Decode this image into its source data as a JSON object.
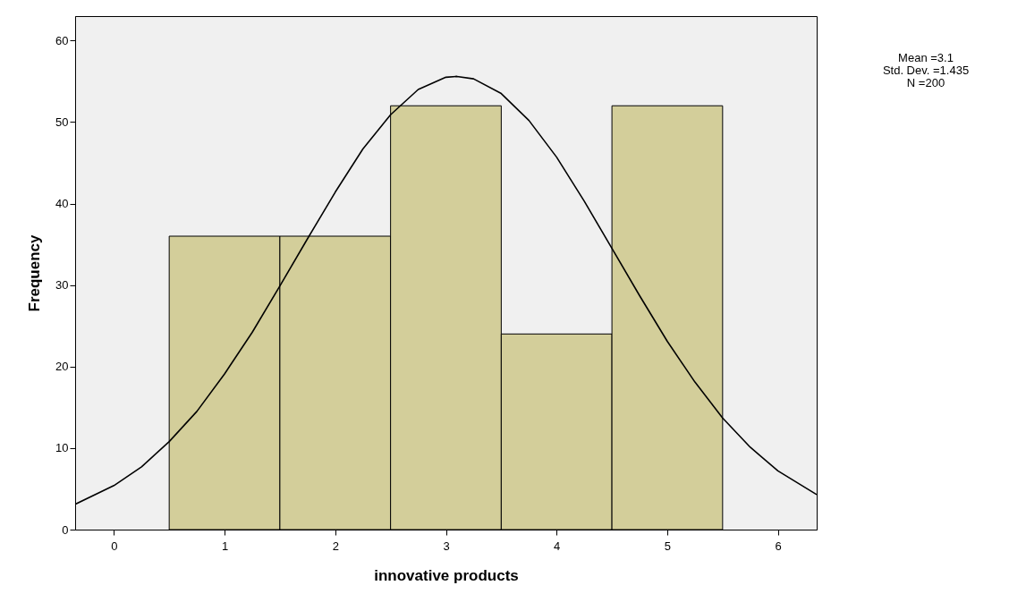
{
  "chart_data": {
    "type": "histogram",
    "xlabel": "innovative products",
    "ylabel": "Frequency",
    "xlim": [
      -0.35,
      6.35
    ],
    "xticks": [
      0,
      1,
      2,
      3,
      4,
      5,
      6
    ],
    "ylim": [
      0,
      63
    ],
    "yticks": [
      0,
      10,
      20,
      30,
      40,
      50,
      60
    ],
    "grid": false,
    "series": [
      {
        "color": "#d3ce9a",
        "bins": [
          0.5,
          1.5,
          2.5,
          3.5,
          4.5,
          5.5
        ],
        "values": [
          36,
          36,
          52,
          24,
          52
        ]
      },
      {
        "type": "line",
        "color": "#000000",
        "x": [
          -0.35,
          0,
          0.25,
          0.5,
          0.75,
          1,
          1.25,
          1.5,
          1.75,
          2,
          2.25,
          2.5,
          2.75,
          3,
          3.1,
          3.25,
          3.5,
          3.75,
          4,
          4.25,
          4.5,
          4.75,
          5,
          5.25,
          5.5,
          5.75,
          6,
          6.35
        ],
        "values": [
          3.1,
          5.4,
          7.7,
          10.8,
          14.5,
          19.1,
          24.2,
          29.9,
          35.7,
          41.4,
          46.7,
          50.9,
          54.0,
          55.5,
          55.6,
          55.3,
          53.5,
          50.2,
          45.7,
          40.3,
          34.5,
          28.7,
          23.1,
          18.1,
          13.7,
          10.1,
          7.2,
          4.3
        ]
      }
    ],
    "annotations": [
      "Mean =3.1",
      "Std. Dev. =1.435",
      "N =200"
    ]
  }
}
